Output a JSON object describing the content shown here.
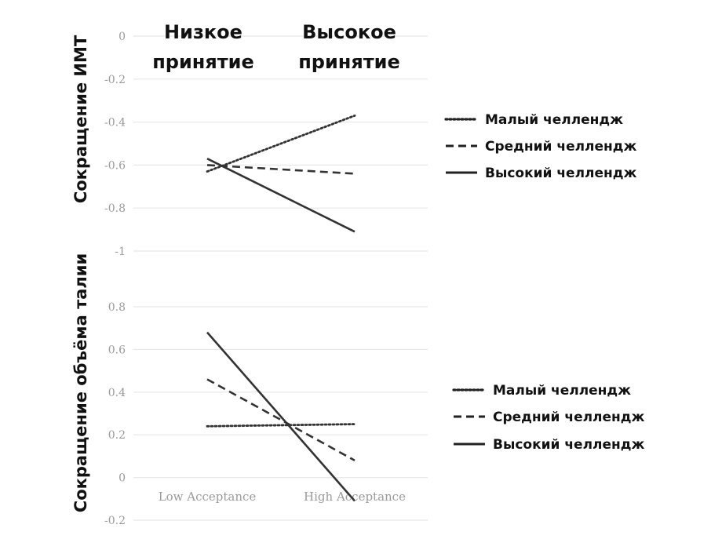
{
  "header": {
    "low": [
      "Низкое",
      "принятие"
    ],
    "high": [
      "Высокое",
      "принятие"
    ]
  },
  "chart_data": [
    {
      "type": "line",
      "ylabel": "Сокращение ИМТ",
      "categories": [
        "Low Acceptance",
        "High Acceptance"
      ],
      "ylim": [
        -1,
        0
      ],
      "yticks": [
        "0",
        "-0.2",
        "-0.4",
        "-0.6",
        "-0.8",
        "-1"
      ],
      "grid": true,
      "legend_position": "right",
      "series": [
        {
          "name": "Малый челлендж",
          "style": "dotted",
          "values": [
            -0.63,
            -0.37
          ]
        },
        {
          "name": "Средний челлендж",
          "style": "dashed",
          "values": [
            -0.6,
            -0.64
          ]
        },
        {
          "name": "Высокий челлендж",
          "style": "solid",
          "values": [
            -0.57,
            -0.91
          ]
        }
      ]
    },
    {
      "type": "line",
      "ylabel": "Сокращение объёма талии",
      "categories": [
        "Low Acceptance",
        "High Acceptance"
      ],
      "ylim": [
        -0.2,
        0.8
      ],
      "yticks": [
        "0.8",
        "0.6",
        "0.4",
        "0.2",
        "0",
        "-0.2"
      ],
      "grid": true,
      "legend_position": "right",
      "series": [
        {
          "name": "Малый челлендж",
          "style": "dotted",
          "values": [
            0.24,
            0.25
          ]
        },
        {
          "name": "Средний челлендж",
          "style": "dashed",
          "values": [
            0.46,
            0.08
          ]
        },
        {
          "name": "Высокий челлендж",
          "style": "solid",
          "values": [
            0.68,
            -0.11
          ]
        }
      ]
    }
  ]
}
